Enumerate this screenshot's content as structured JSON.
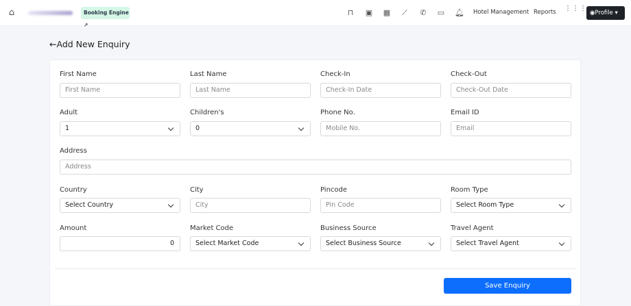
{
  "topbar": {
    "booking_engine": "Booking Engine",
    "hotel_management": "Hotel Management",
    "reports": "Reports",
    "profile": "Profile",
    "icons": [
      "bed-icon",
      "calendar-plus-icon",
      "calendar-icon",
      "chart-line-icon",
      "phone-icon",
      "cash-icon",
      "bell-icon",
      "grid-icon"
    ]
  },
  "page": {
    "title": "Add New Enquiry"
  },
  "form": {
    "first_name": {
      "label": "First Name",
      "placeholder": "First Name"
    },
    "last_name": {
      "label": "Last Name",
      "placeholder": "Last Name"
    },
    "check_in": {
      "label": "Check-In",
      "placeholder": "Check-In Date"
    },
    "check_out": {
      "label": "Check-Out",
      "placeholder": "Check-Out Date"
    },
    "adult": {
      "label": "Adult",
      "value": "1"
    },
    "children": {
      "label": "Children's",
      "value": "0"
    },
    "phone": {
      "label": "Phone No.",
      "placeholder": "Mobile No."
    },
    "email": {
      "label": "Email ID",
      "placeholder": "Email"
    },
    "address": {
      "label": "Address",
      "placeholder": "Address"
    },
    "country": {
      "label": "Country",
      "value": "Select Country"
    },
    "city": {
      "label": "City",
      "placeholder": "City"
    },
    "pincode": {
      "label": "Pincode",
      "placeholder": "Pin Code"
    },
    "room_type": {
      "label": "Room Type",
      "value": "Select Room Type"
    },
    "amount": {
      "label": "Amount",
      "value": "0"
    },
    "market_code": {
      "label": "Market Code",
      "value": "Select Market Code"
    },
    "business_source": {
      "label": "Business Source",
      "value": "Select Business Source"
    },
    "travel_agent": {
      "label": "Travel Agent",
      "value": "Select Travel Agent"
    },
    "save": "Save Enquiry"
  },
  "colors": {
    "primary": "#0d6efd",
    "badge_bg": "#d5f7e6",
    "profile_bg": "#1f2328"
  }
}
